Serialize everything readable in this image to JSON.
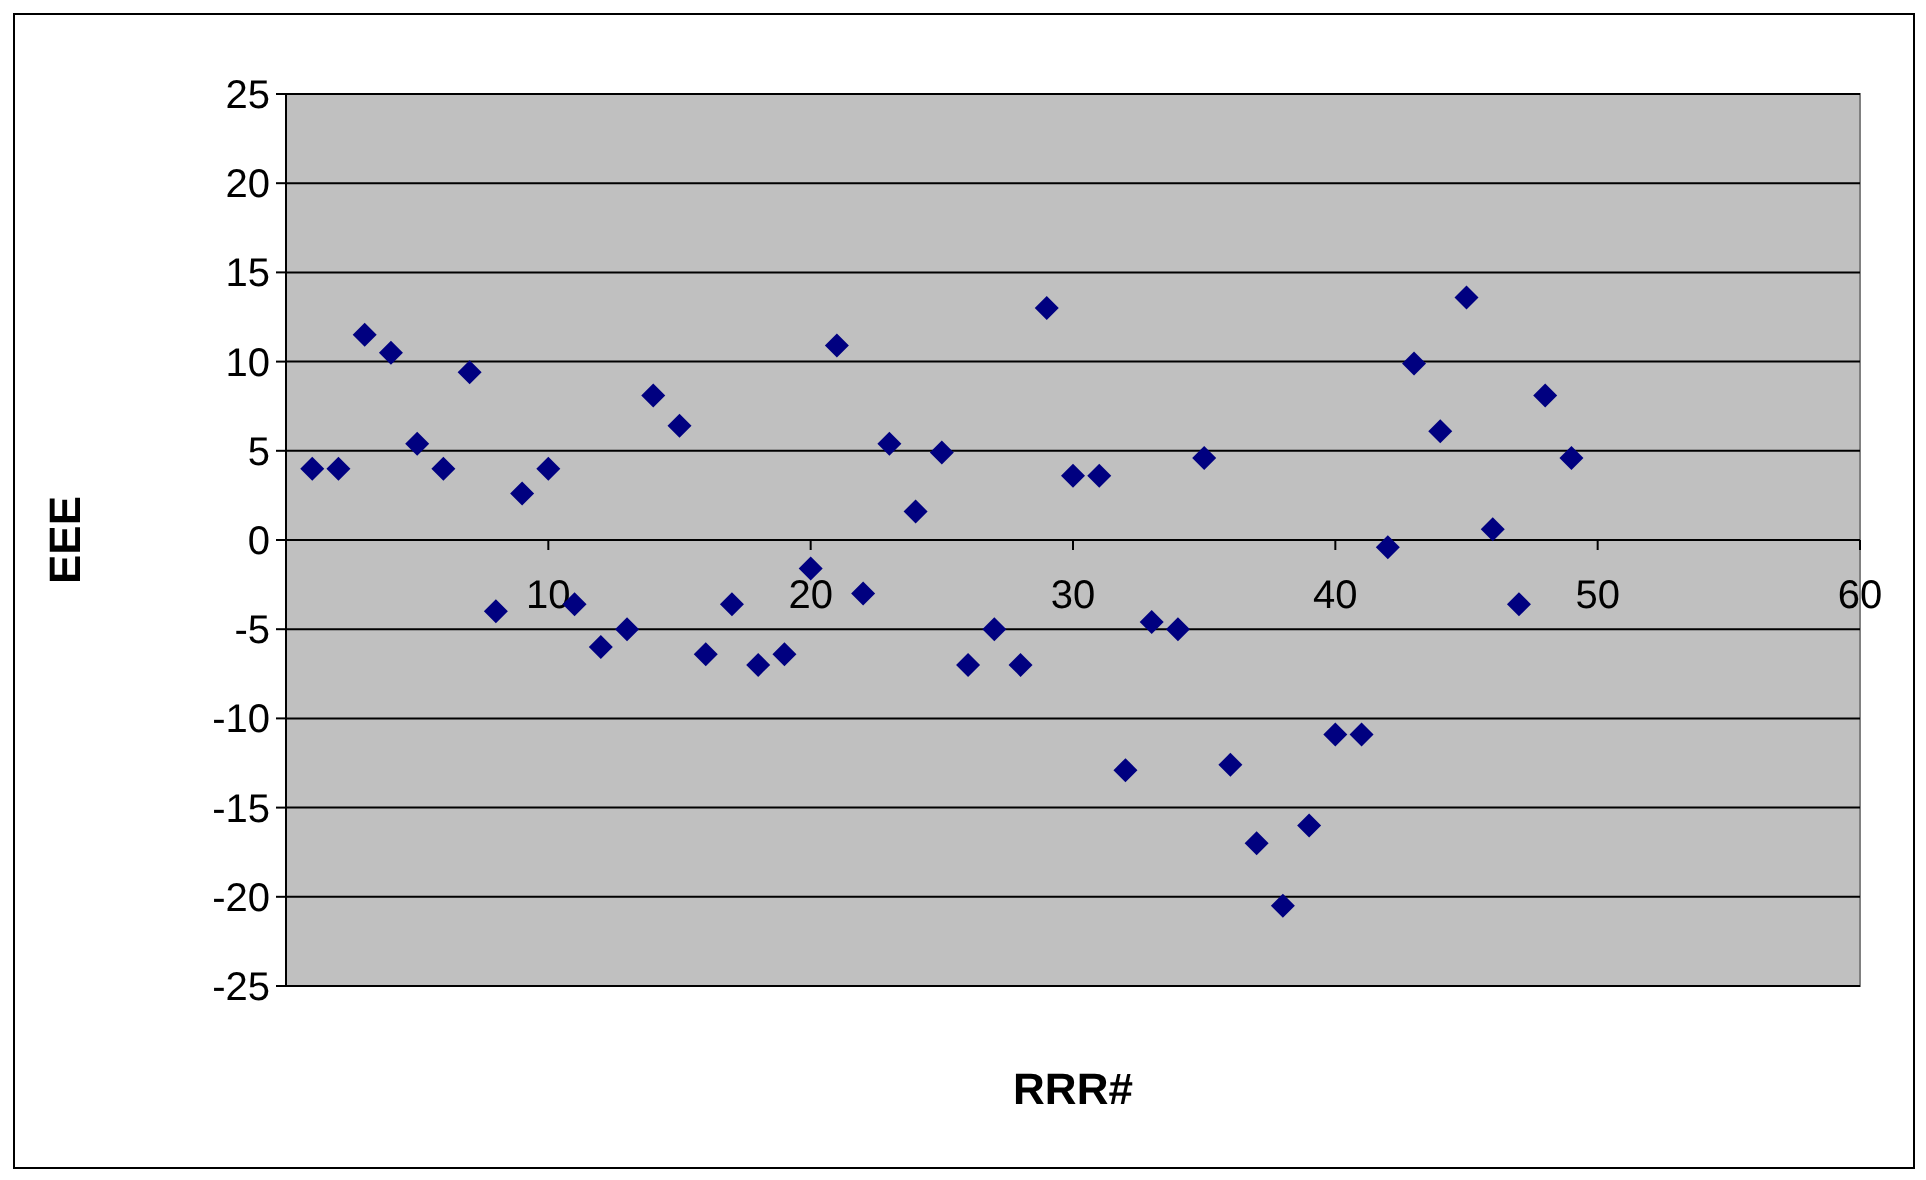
{
  "chart_data": {
    "type": "scatter",
    "xlabel": "RRR#",
    "ylabel": "EEE",
    "x": [
      1,
      2,
      3,
      4,
      5,
      6,
      7,
      8,
      9,
      10,
      11,
      12,
      13,
      14,
      15,
      16,
      17,
      18,
      19,
      20,
      21,
      22,
      23,
      24,
      25,
      26,
      27,
      28,
      29,
      30,
      31,
      32,
      33,
      34,
      35,
      36,
      37,
      38,
      39,
      40,
      41,
      42,
      43,
      44,
      45,
      46,
      47,
      48,
      49
    ],
    "series": [
      {
        "color": "#000080",
        "values": [
          4,
          4,
          11.5,
          10.5,
          5.4,
          4,
          9.4,
          -4,
          2.6,
          4,
          -3.6,
          -6,
          -5,
          8.1,
          6.4,
          -6.4,
          -3.6,
          -7,
          -6.4,
          -1.6,
          10.9,
          -3,
          5.4,
          1.6,
          4.9,
          -7,
          -5,
          -7,
          13,
          3.6,
          3.6,
          -12.9,
          -4.6,
          -5,
          4.6,
          -12.6,
          -17,
          -20.5,
          -16,
          -10.9,
          -10.9,
          -0.4,
          9.9,
          6.1,
          13.6,
          0.6,
          -3.6,
          8.1,
          4.6
        ]
      }
    ],
    "xlim": [
      0,
      60
    ],
    "xticks": [
      {
        "value": 0,
        "label": null
      },
      10,
      20,
      30,
      40,
      50,
      60
    ],
    "ylim": [
      -25,
      25
    ],
    "yticks": [
      -25,
      -20,
      -15,
      -10,
      -5,
      0,
      5,
      10,
      15,
      20,
      25
    ],
    "grid": "y",
    "marker": "diamond"
  }
}
